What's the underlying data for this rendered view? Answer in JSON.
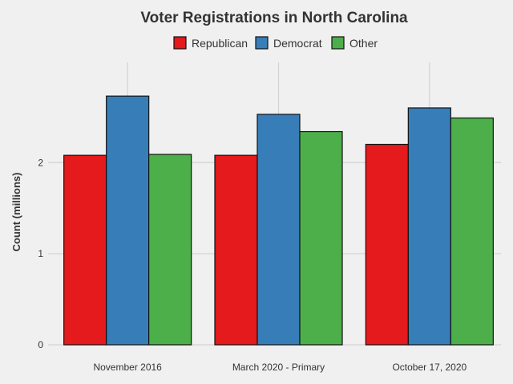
{
  "chart_data": {
    "type": "bar",
    "title": "Voter Registrations in North Carolina",
    "xlabel": "",
    "ylabel": "Count  (millions)",
    "categories": [
      "November 2016",
      "March 2020 - Primary",
      "October 17, 2020"
    ],
    "series": [
      {
        "name": "Republican",
        "color": "#e41a1c",
        "values": [
          2.08,
          2.08,
          2.2
        ]
      },
      {
        "name": "Democrat",
        "color": "#377eb8",
        "values": [
          2.73,
          2.53,
          2.6
        ]
      },
      {
        "name": "Other",
        "color": "#4daf4a",
        "values": [
          2.09,
          2.34,
          2.49
        ]
      }
    ],
    "yticks": [
      0,
      1,
      2
    ],
    "ylim": [
      0,
      3.1
    ],
    "grid": true,
    "legend_position": "top"
  }
}
